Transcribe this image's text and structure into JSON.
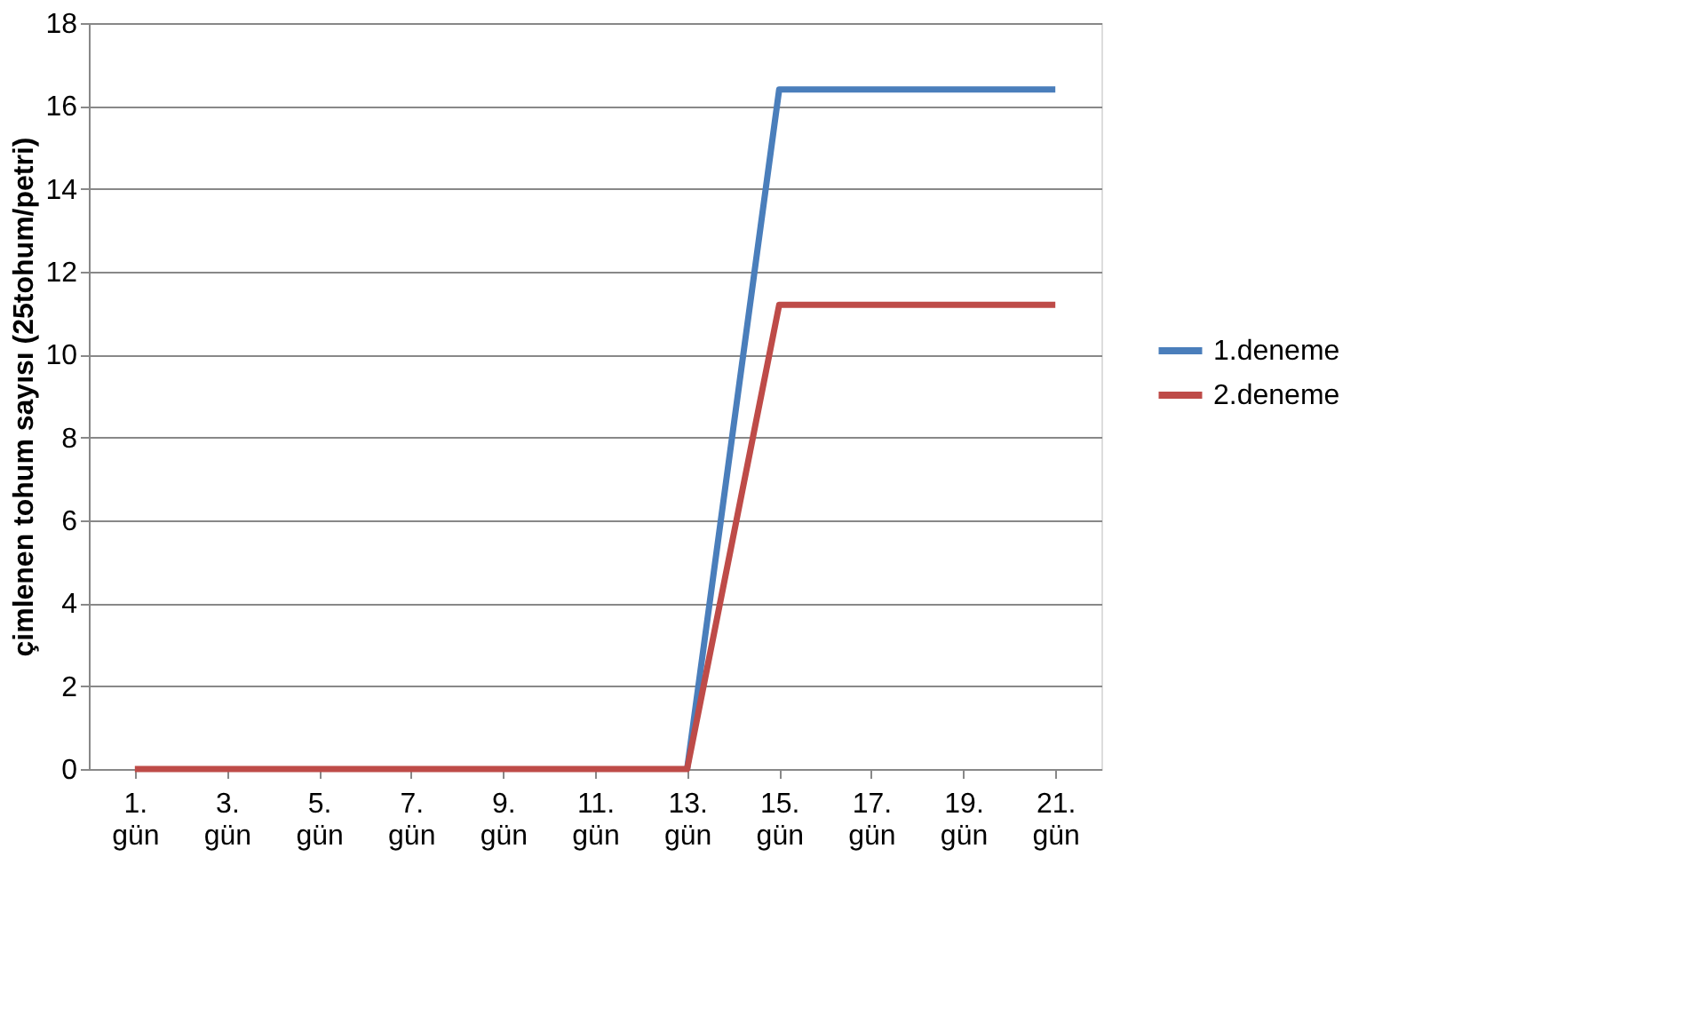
{
  "chart_data": {
    "type": "line",
    "ylabel": "çimlenen tohum sayısı (25tohum/petri)",
    "categories": [
      "1. gün",
      "3. gün",
      "5. gün",
      "7. gün",
      "9. gün",
      "11. gün",
      "13. gün",
      "15. gün",
      "17. gün",
      "19. gün",
      "21. gün"
    ],
    "series": [
      {
        "name": "1.deneme",
        "color": "#4a7ebb",
        "values": [
          null,
          null,
          null,
          null,
          null,
          null,
          0,
          16.4,
          16.4,
          16.4,
          16.4
        ]
      },
      {
        "name": "2.deneme",
        "color": "#be4b48",
        "values": [
          0,
          0,
          0,
          0,
          0,
          0,
          0,
          11.2,
          11.2,
          11.2,
          11.2
        ]
      }
    ],
    "ylim": [
      0,
      18
    ],
    "yticks": [
      0,
      2,
      4,
      6,
      8,
      10,
      12,
      14,
      16,
      18
    ],
    "grid": "y",
    "legend": "right",
    "marker": "none",
    "line_style": "solid"
  }
}
